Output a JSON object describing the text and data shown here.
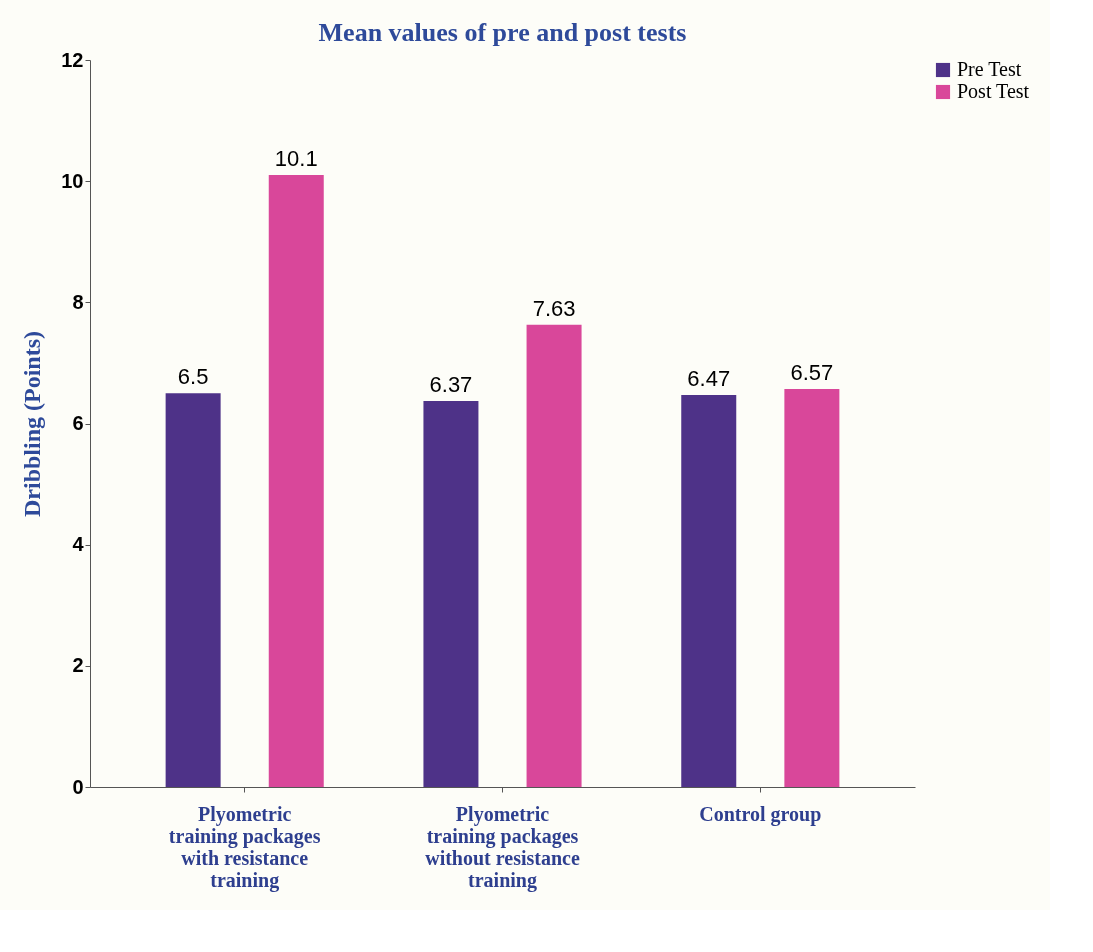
{
  "chart_data": {
    "type": "bar",
    "title": "Mean values of pre and post tests",
    "ylabel": "Dribbling (Points)",
    "categories": [
      "Plyometric training packages with resistance training",
      "Plyometric training packages without resistance training",
      "Control group"
    ],
    "series": [
      {
        "name": "Pre Test",
        "color": "#4e3288",
        "values": [
          6.5,
          6.37,
          6.47
        ]
      },
      {
        "name": "Post Test",
        "color": "#d9479a",
        "values": [
          10.1,
          7.63,
          6.57
        ]
      }
    ],
    "ylim": [
      0,
      12
    ],
    "yticks": [
      0,
      2,
      4,
      6,
      8,
      10,
      12
    ],
    "grid": false,
    "legend": "right",
    "data_labels": true
  }
}
